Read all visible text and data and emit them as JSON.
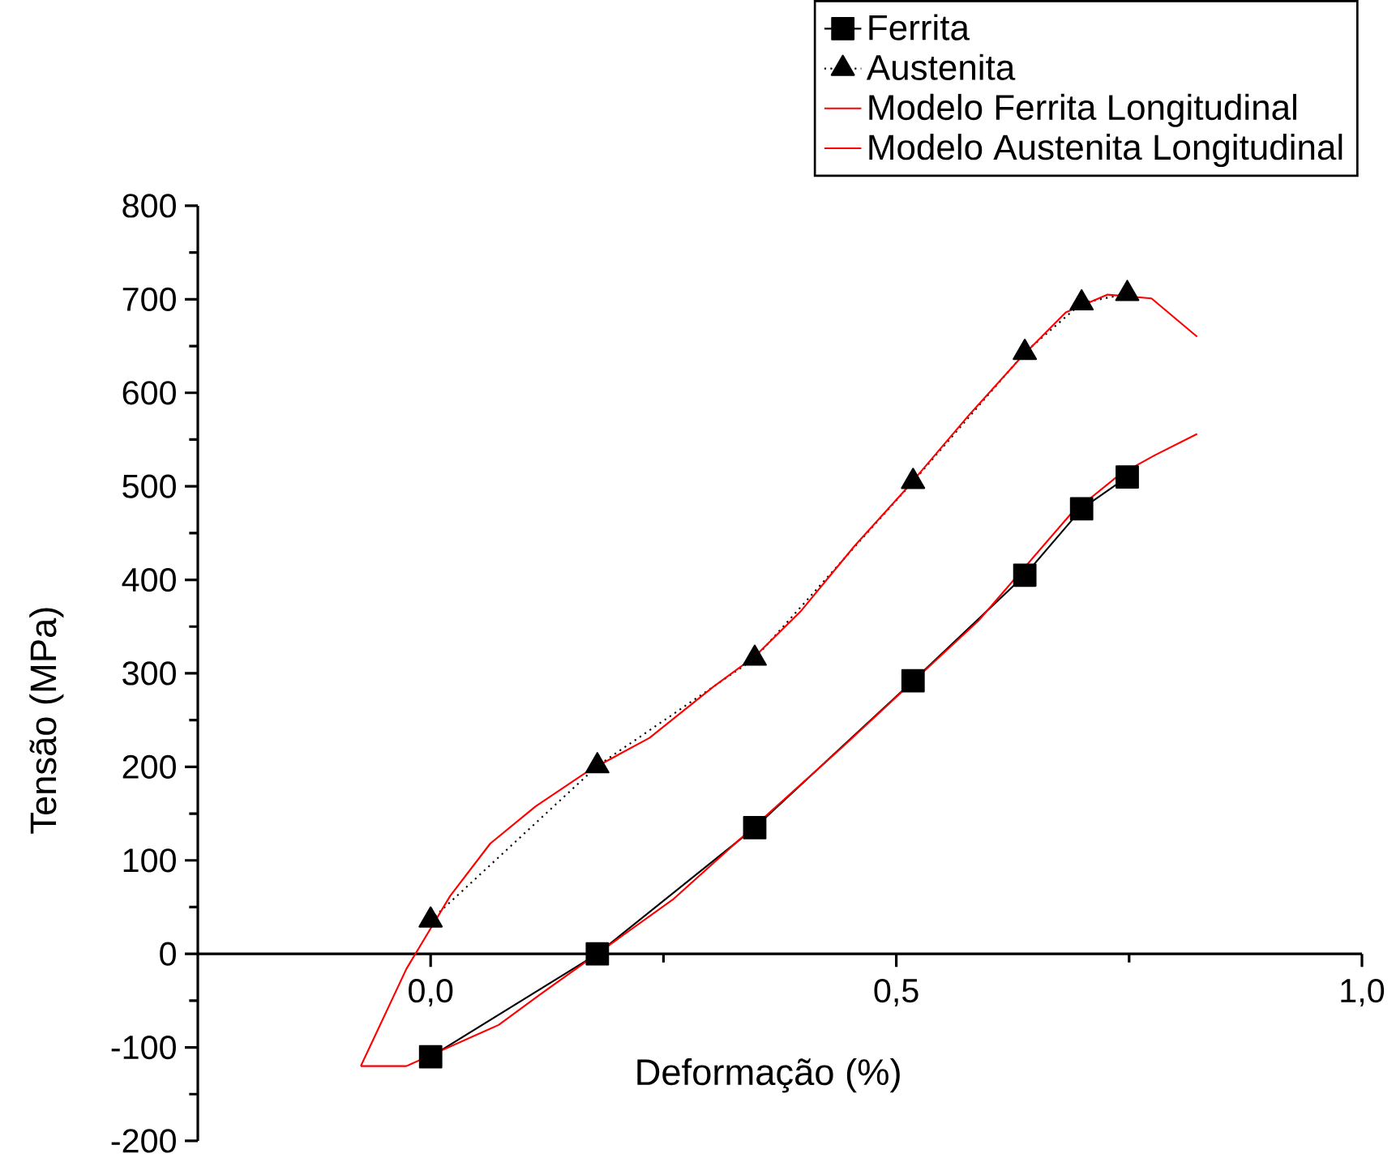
{
  "chart_data": {
    "type": "line",
    "xlabel": "Deformação (%)",
    "ylabel": "Tensão (MPa)",
    "xlim": [
      -0.25,
      1.0
    ],
    "ylim": [
      -200,
      800
    ],
    "xticks": [
      {
        "value": 0,
        "label": "0,0"
      },
      {
        "value": 0.5,
        "label": "0,5"
      },
      {
        "value": 1.0,
        "label": "1,0"
      }
    ],
    "yticks": [
      -200,
      -100,
      0,
      100,
      200,
      300,
      400,
      500,
      600,
      700,
      800
    ],
    "legend": "top right",
    "grid": false,
    "series": [
      {
        "name": "Ferrita",
        "color": "#000000",
        "marker": "square",
        "line_style": "solid",
        "x": [
          0.0,
          0.179,
          0.348,
          0.518,
          0.638,
          0.699,
          0.748
        ],
        "values": [
          -110,
          0,
          135,
          292,
          405,
          476,
          510
        ]
      },
      {
        "name": "Austenita",
        "color": "#000000",
        "marker": "triangle",
        "line_style": "dotted",
        "x": [
          0.0,
          0.179,
          0.348,
          0.518,
          0.638,
          0.699,
          0.748
        ],
        "values": [
          36,
          201,
          316,
          505,
          643,
          696,
          706
        ]
      },
      {
        "name": "Modelo Ferrita Longitudinal",
        "color": "#ff0000",
        "marker": "none",
        "line_style": "solid",
        "x": [
          -0.075,
          -0.026,
          0.073,
          0.118,
          0.26,
          0.443,
          0.588,
          0.687,
          0.739,
          0.777,
          0.823
        ],
        "values": [
          -120,
          -120,
          -76,
          -43,
          58,
          222,
          356,
          470,
          512,
          533,
          556
        ]
      },
      {
        "name": "Modelo Austenita Longitudinal",
        "color": "#ff0000",
        "marker": "none",
        "line_style": "solid",
        "x": [
          -0.075,
          -0.026,
          0.021,
          0.064,
          0.113,
          0.17,
          0.235,
          0.304,
          0.348,
          0.397,
          0.455,
          0.513,
          0.577,
          0.635,
          0.682,
          0.727,
          0.774,
          0.823
        ],
        "values": [
          -120,
          -16,
          62,
          118,
          158,
          196,
          231,
          286,
          318,
          366,
          436,
          500,
          575,
          639,
          686,
          705,
          701,
          660
        ]
      }
    ]
  }
}
